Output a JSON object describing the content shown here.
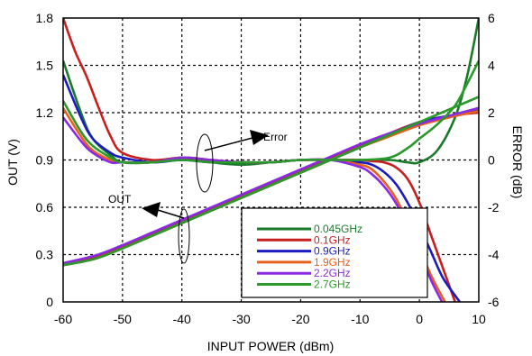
{
  "chart_data": {
    "type": "line",
    "xlabel": "INPUT POWER (dBm)",
    "ylabel": "OUT (V)",
    "y2label": "ERROR (dB)",
    "xlim": [
      -60,
      10
    ],
    "ylim": [
      0,
      1.8
    ],
    "y2lim": [
      -6,
      6
    ],
    "xticks": [
      -60,
      -50,
      -40,
      -30,
      -20,
      -10,
      0,
      10
    ],
    "yticks": [
      "0",
      "0.3",
      "0.6",
      "0.9",
      "1.2",
      "1.5",
      "1.8"
    ],
    "y2ticks": [
      "-6",
      "-4",
      "-2",
      "0",
      "2",
      "4",
      "6"
    ],
    "grid": true,
    "legend_position": "lower-right",
    "annotations": {
      "error": "Error",
      "out": "OUT"
    },
    "series": [
      {
        "name": "0.045GHz",
        "color": "#1a7a2a",
        "out_x": [
          -62,
          -55,
          -50,
          -45,
          -40,
          -35,
          -30,
          -25,
          -20,
          -15,
          -10,
          -5,
          0,
          5,
          10
        ],
        "out_y": [
          0.22,
          0.27,
          0.34,
          0.42,
          0.5,
          0.58,
          0.66,
          0.74,
          0.82,
          0.9,
          0.98,
          1.06,
          1.13,
          1.18,
          1.22
        ],
        "err_x": [
          -60,
          -57,
          -55,
          -52,
          -50,
          -45,
          -40,
          -35,
          -30,
          -25,
          -20,
          -15,
          -10,
          -5,
          -2,
          0,
          3,
          6,
          8,
          10
        ],
        "err_y": [
          4.2,
          2.0,
          0.9,
          0.2,
          -0.1,
          -0.1,
          0.1,
          -0.1,
          -0.2,
          -0.1,
          0.0,
          0.0,
          0.0,
          0.0,
          -0.1,
          -0.1,
          0.4,
          1.8,
          3.5,
          6.0
        ]
      },
      {
        "name": "0.1GHz",
        "color": "#c81e1e",
        "out_x": [
          -62,
          -55,
          -50,
          -45,
          -40,
          -35,
          -30,
          -25,
          -20,
          -15,
          -10,
          -5,
          0,
          5,
          10
        ],
        "out_y": [
          0.23,
          0.28,
          0.35,
          0.43,
          0.51,
          0.59,
          0.67,
          0.75,
          0.83,
          0.91,
          0.99,
          1.07,
          1.14,
          1.18,
          1.2
        ],
        "err_x": [
          -60,
          -58,
          -56,
          -54,
          -52,
          -50,
          -45,
          -40,
          -35,
          -30,
          -25,
          -20,
          -15,
          -10,
          -8,
          -6,
          -4,
          -2,
          0,
          2,
          4,
          6
        ],
        "err_y": [
          6.0,
          4.6,
          3.5,
          2.2,
          1.0,
          0.3,
          0.0,
          0.1,
          0.0,
          -0.1,
          -0.1,
          0.0,
          0.0,
          0.0,
          -0.05,
          -0.1,
          -0.3,
          -0.8,
          -1.8,
          -3.2,
          -4.6,
          -6.0
        ]
      },
      {
        "name": "0.9GHz",
        "color": "#1c1cc0",
        "out_x": [
          -62,
          -55,
          -50,
          -45,
          -40,
          -35,
          -30,
          -25,
          -20,
          -15,
          -10,
          -5,
          0,
          5,
          10
        ],
        "out_y": [
          0.22,
          0.27,
          0.34,
          0.42,
          0.5,
          0.58,
          0.66,
          0.74,
          0.82,
          0.9,
          0.98,
          1.06,
          1.14,
          1.18,
          1.21
        ],
        "err_x": [
          -60,
          -57,
          -55,
          -52,
          -50,
          -45,
          -40,
          -35,
          -30,
          -25,
          -20,
          -15,
          -10,
          -8,
          -6,
          -4,
          -2,
          0,
          2,
          4,
          6.8
        ],
        "err_y": [
          3.6,
          1.8,
          0.9,
          0.3,
          0.1,
          -0.1,
          0.0,
          -0.1,
          -0.1,
          -0.1,
          0.0,
          0.0,
          -0.1,
          -0.2,
          -0.5,
          -1.0,
          -1.8,
          -2.8,
          -3.9,
          -5.0,
          -6.0
        ]
      },
      {
        "name": "1.9GHz",
        "color": "#e8601c",
        "out_x": [
          -62,
          -55,
          -50,
          -45,
          -40,
          -35,
          -30,
          -25,
          -20,
          -15,
          -10,
          -5,
          0,
          5,
          10
        ],
        "out_y": [
          0.22,
          0.27,
          0.34,
          0.42,
          0.5,
          0.58,
          0.66,
          0.74,
          0.82,
          0.9,
          0.98,
          1.05,
          1.12,
          1.17,
          1.21
        ],
        "err_x": [
          -60,
          -57,
          -55,
          -52,
          -50,
          -45,
          -40,
          -35,
          -30,
          -25,
          -20,
          -15,
          -10,
          -8,
          -6,
          -4,
          -2,
          0,
          2,
          4.3
        ],
        "err_y": [
          2.2,
          1.0,
          0.4,
          0.0,
          -0.1,
          -0.1,
          0.1,
          0.0,
          -0.1,
          -0.1,
          0.0,
          0.0,
          -0.2,
          -0.4,
          -0.9,
          -1.6,
          -2.6,
          -3.7,
          -4.9,
          -6.0
        ]
      },
      {
        "name": "2.2GHz",
        "color": "#8a2be2",
        "out_x": [
          -62,
          -55,
          -50,
          -45,
          -40,
          -35,
          -30,
          -25,
          -20,
          -15,
          -10,
          -5,
          0,
          5,
          10
        ],
        "out_y": [
          0.23,
          0.29,
          0.36,
          0.44,
          0.52,
          0.6,
          0.68,
          0.76,
          0.84,
          0.92,
          1.0,
          1.07,
          1.13,
          1.18,
          1.23
        ],
        "err_x": [
          -60,
          -57,
          -55,
          -52,
          -50,
          -45,
          -40,
          -35,
          -30,
          -25,
          -20,
          -15,
          -10,
          -8,
          -6,
          -4,
          -2,
          0,
          2,
          3.8
        ],
        "err_y": [
          1.8,
          0.8,
          0.3,
          -0.1,
          -0.1,
          -0.1,
          0.1,
          0.0,
          -0.1,
          -0.1,
          0.0,
          0.0,
          -0.3,
          -0.6,
          -1.1,
          -1.8,
          -2.8,
          -3.9,
          -5.1,
          -6.0
        ]
      },
      {
        "name": "2.7GHz",
        "color": "#2a9a2a",
        "out_x": [
          -62,
          -55,
          -50,
          -45,
          -40,
          -35,
          -30,
          -25,
          -20,
          -15,
          -10,
          -5,
          0,
          5,
          10
        ],
        "out_y": [
          0.22,
          0.27,
          0.34,
          0.42,
          0.5,
          0.58,
          0.66,
          0.74,
          0.82,
          0.9,
          0.98,
          1.06,
          1.14,
          1.22,
          1.3
        ],
        "err_x": [
          -60,
          -57,
          -55,
          -52,
          -50,
          -45,
          -40,
          -35,
          -30,
          -25,
          -20,
          -15,
          -10,
          -5,
          -2,
          0,
          3,
          6,
          8,
          10
        ],
        "err_y": [
          2.5,
          1.2,
          0.6,
          0.1,
          -0.1,
          -0.1,
          0.0,
          -0.1,
          -0.1,
          -0.1,
          0.0,
          0.0,
          0.0,
          0.1,
          0.5,
          0.9,
          1.5,
          2.3,
          3.2,
          4.2
        ]
      }
    ]
  }
}
